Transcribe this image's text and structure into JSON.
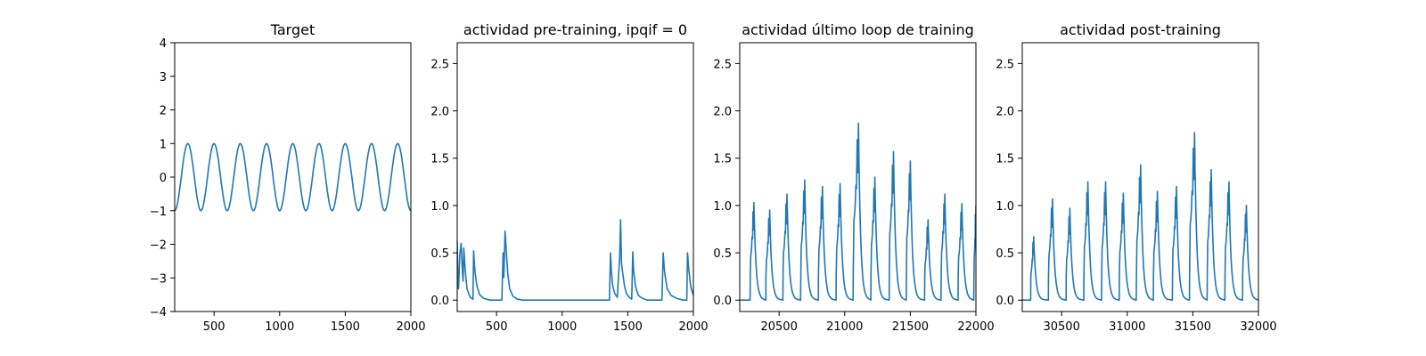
{
  "colors": {
    "series": "#1f77b4",
    "axes": "#000000",
    "background": "#ffffff"
  },
  "chart_data": [
    {
      "type": "line",
      "title": "Target",
      "xlabel": "",
      "ylabel": "",
      "xlim": [
        200,
        2000
      ],
      "ylim": [
        -4,
        4
      ],
      "x_ticks": [
        500,
        1000,
        1500,
        2000
      ],
      "y_ticks": [
        -4,
        -3,
        -2,
        -1,
        0,
        1,
        2,
        3,
        4
      ],
      "x_tick_labels": [
        "500",
        "1000",
        "1500",
        "2000"
      ],
      "y_tick_labels": [
        "−4",
        "−3",
        "−2",
        "−1",
        "0",
        "1",
        "2",
        "3",
        "4"
      ],
      "grid": false,
      "series": [
        {
          "x": [
            200,
            250,
            300,
            350,
            400,
            450,
            500,
            550,
            600,
            650,
            700,
            750,
            800,
            850,
            900,
            950,
            1000,
            1050,
            1100,
            1150,
            1200,
            1250,
            1300,
            1350,
            1400,
            1450,
            1500,
            1550,
            1600,
            1650,
            1700,
            1750,
            1800,
            1850,
            1900,
            1950,
            2000
          ],
          "values": [
            -1,
            0,
            1,
            0,
            -1,
            0,
            1,
            0,
            -1,
            0,
            1,
            0,
            -1,
            0,
            1,
            0,
            -1,
            0,
            1,
            0,
            -1,
            0,
            1,
            0,
            -1,
            0,
            1,
            0,
            -1,
            0,
            1,
            0,
            -1,
            0,
            1,
            0,
            -1
          ]
        }
      ]
    },
    {
      "type": "line",
      "title": "actividad pre-training, ipqif = 0",
      "xlabel": "",
      "ylabel": "",
      "xlim": [
        200,
        2000
      ],
      "ylim": [
        -0.12,
        2.72
      ],
      "x_ticks": [
        500,
        1000,
        1500,
        2000
      ],
      "y_ticks": [
        0.0,
        0.5,
        1.0,
        1.5,
        2.0,
        2.5
      ],
      "x_tick_labels": [
        "500",
        "1000",
        "1500",
        "2000"
      ],
      "y_tick_labels": [
        "0.0",
        "0.5",
        "1.0",
        "1.5",
        "2.0",
        "2.5"
      ],
      "grid": false,
      "series": [
        {
          "x": [
            200,
            205,
            210,
            220,
            230,
            240,
            245,
            250,
            262,
            275,
            290,
            300,
            320,
            325,
            335,
            350,
            370,
            400,
            450,
            500,
            540,
            550,
            555,
            565,
            575,
            585,
            600,
            625,
            660,
            700,
            800,
            900,
            1000,
            1100,
            1200,
            1300,
            1360,
            1368,
            1375,
            1385,
            1400,
            1420,
            1438,
            1445,
            1452,
            1460,
            1475,
            1490,
            1510,
            1530,
            1538,
            1545,
            1560,
            1580,
            1610,
            1650,
            1700,
            1760,
            1770,
            1780,
            1800,
            1830,
            1870,
            1920,
            1950,
            1955,
            1965,
            1980,
            2000
          ],
          "values": [
            0.62,
            0.3,
            0.12,
            0.48,
            0.6,
            0.3,
            0.2,
            0.55,
            0.3,
            0.12,
            0.06,
            0.03,
            0.01,
            0.52,
            0.3,
            0.15,
            0.06,
            0.02,
            0.0,
            0.0,
            0.0,
            0.5,
            0.24,
            0.73,
            0.5,
            0.28,
            0.12,
            0.04,
            0.01,
            0.0,
            0.0,
            0.0,
            0.0,
            0.0,
            0.0,
            0.0,
            0.0,
            0.5,
            0.3,
            0.15,
            0.07,
            0.03,
            0.45,
            0.85,
            0.4,
            0.3,
            0.15,
            0.07,
            0.03,
            0.01,
            0.51,
            0.3,
            0.14,
            0.05,
            0.02,
            0.0,
            0.0,
            0.0,
            0.5,
            0.3,
            0.12,
            0.05,
            0.02,
            0.0,
            0.0,
            0.5,
            0.32,
            0.14,
            0.05
          ]
        }
      ]
    },
    {
      "type": "line",
      "title": "actividad último loop de training",
      "xlabel": "",
      "ylabel": "",
      "xlim": [
        20200,
        22000
      ],
      "ylim": [
        -0.12,
        2.72
      ],
      "x_ticks": [
        20500,
        21000,
        21500,
        22000
      ],
      "y_ticks": [
        0.0,
        0.5,
        1.0,
        1.5,
        2.0,
        2.5
      ],
      "x_tick_labels": [
        "20500",
        "21000",
        "21500",
        "22000"
      ],
      "y_tick_labels": [
        "0.0",
        "0.5",
        "1.0",
        "1.5",
        "2.0",
        "2.5"
      ],
      "grid": false,
      "bursts": [
        {
          "t": 20280,
          "peak": 1.03,
          "dur": 28
        },
        {
          "t": 20400,
          "peak": 0.95,
          "dur": 28
        },
        {
          "t": 20530,
          "peak": 1.12,
          "dur": 30
        },
        {
          "t": 20665,
          "peak": 1.27,
          "dur": 30
        },
        {
          "t": 20800,
          "peak": 1.2,
          "dur": 30
        },
        {
          "t": 20935,
          "peak": 1.23,
          "dur": 30
        },
        {
          "t": 21065,
          "peak": 1.87,
          "dur": 40
        },
        {
          "t": 21200,
          "peak": 1.3,
          "dur": 30
        },
        {
          "t": 21340,
          "peak": 1.57,
          "dur": 32
        },
        {
          "t": 21470,
          "peak": 1.47,
          "dur": 30
        },
        {
          "t": 21610,
          "peak": 0.85,
          "dur": 25
        },
        {
          "t": 21735,
          "peak": 1.12,
          "dur": 28
        },
        {
          "t": 21865,
          "peak": 1.02,
          "dur": 28
        },
        {
          "t": 21985,
          "peak": 1.0,
          "dur": 15
        }
      ]
    },
    {
      "type": "line",
      "title": "actividad post-training",
      "xlabel": "",
      "ylabel": "",
      "xlim": [
        30200,
        32000
      ],
      "ylim": [
        -0.12,
        2.72
      ],
      "x_ticks": [
        30500,
        31000,
        31500,
        32000
      ],
      "y_ticks": [
        0.0,
        0.5,
        1.0,
        1.5,
        2.0,
        2.5
      ],
      "x_tick_labels": [
        "30500",
        "31000",
        "31500",
        "32000"
      ],
      "y_tick_labels": [
        "0.0",
        "0.5",
        "1.0",
        "1.5",
        "2.0",
        "2.5"
      ],
      "grid": false,
      "bursts": [
        {
          "t": 30265,
          "peak": 0.67,
          "dur": 22
        },
        {
          "t": 30400,
          "peak": 1.07,
          "dur": 30
        },
        {
          "t": 30535,
          "peak": 0.97,
          "dur": 28
        },
        {
          "t": 30670,
          "peak": 1.25,
          "dur": 30
        },
        {
          "t": 30805,
          "peak": 1.25,
          "dur": 30
        },
        {
          "t": 30940,
          "peak": 1.13,
          "dur": 30
        },
        {
          "t": 31070,
          "peak": 1.43,
          "dur": 32
        },
        {
          "t": 31200,
          "peak": 1.15,
          "dur": 30
        },
        {
          "t": 31345,
          "peak": 1.2,
          "dur": 30
        },
        {
          "t": 31475,
          "peak": 1.77,
          "dur": 38
        },
        {
          "t": 31610,
          "peak": 1.38,
          "dur": 30
        },
        {
          "t": 31745,
          "peak": 1.25,
          "dur": 30
        },
        {
          "t": 31880,
          "peak": 1.0,
          "dur": 28
        }
      ]
    }
  ]
}
